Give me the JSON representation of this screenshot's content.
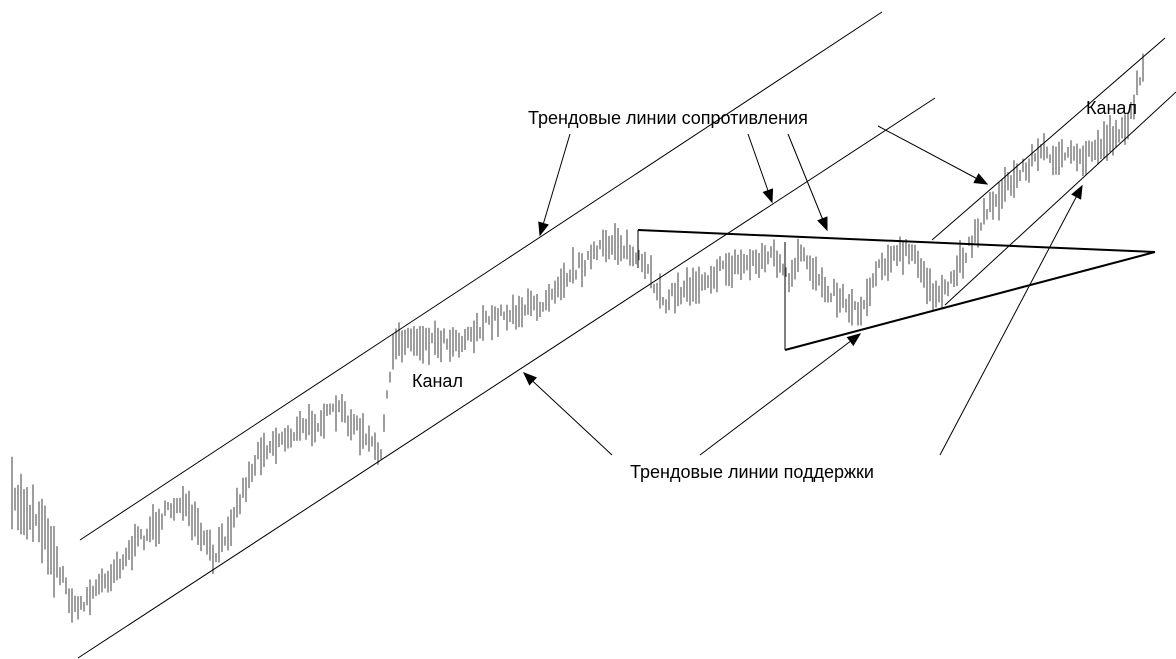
{
  "annotations": {
    "resistance": "Трендовые линии сопротивления",
    "support": "Трендовые линии поддержки",
    "channel_labels": [
      "Канал",
      "Канал"
    ]
  }
}
